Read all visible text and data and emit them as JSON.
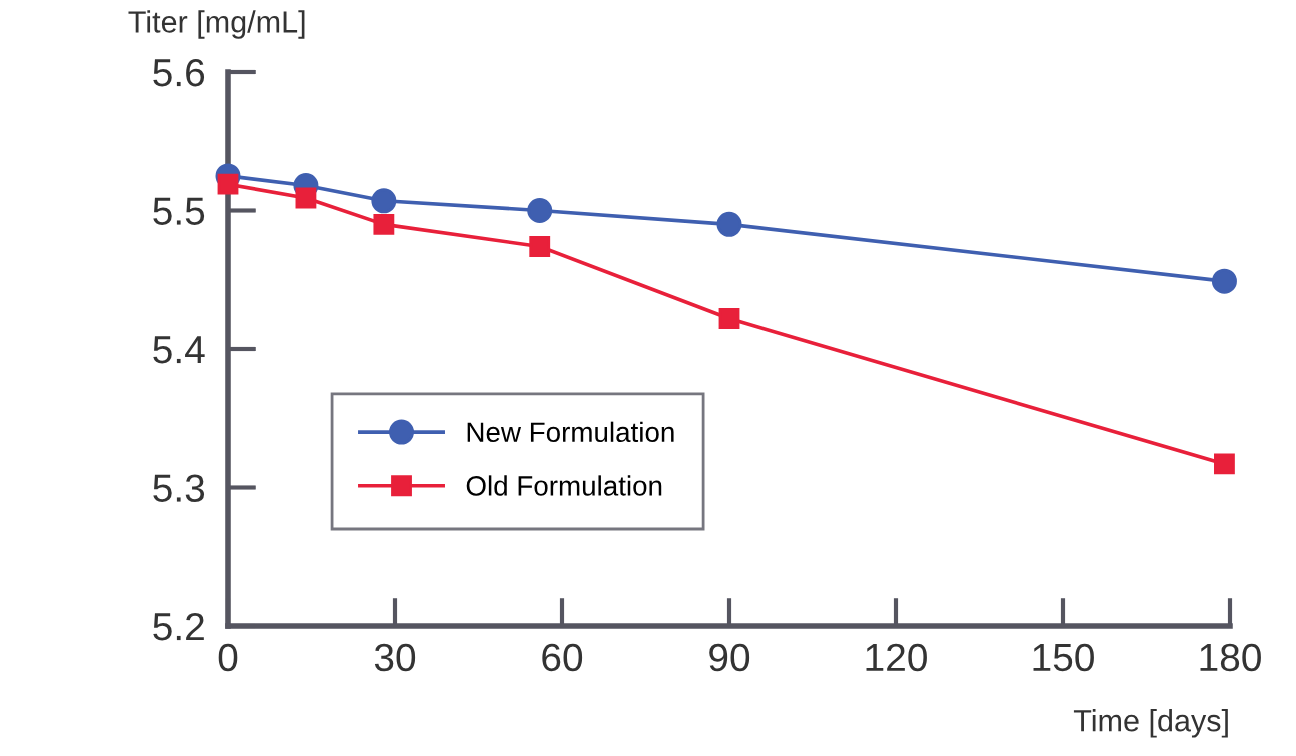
{
  "chart_data": {
    "type": "line",
    "xlabel": "Time [days]",
    "ylabel": "Titer [mg/mL]",
    "x": [
      0,
      14,
      28,
      56,
      90,
      179
    ],
    "series": [
      {
        "name": "New Formulation",
        "color": "#3f5fb0",
        "marker": "circle",
        "values": [
          5.525,
          5.518,
          5.507,
          5.5,
          5.49,
          5.449
        ]
      },
      {
        "name": "Old Formulation",
        "color": "#e8203a",
        "marker": "square",
        "values": [
          5.519,
          5.509,
          5.49,
          5.474,
          5.422,
          5.317
        ]
      }
    ],
    "xlim": [
      0,
      180
    ],
    "xticks": [
      0,
      30,
      60,
      90,
      120,
      150,
      180
    ],
    "ylim": [
      5.2,
      5.6
    ],
    "yticks": [
      5.2,
      5.3,
      5.4,
      5.5,
      5.6
    ],
    "grid": false,
    "legend": "bottom left",
    "line_style": "solid"
  }
}
